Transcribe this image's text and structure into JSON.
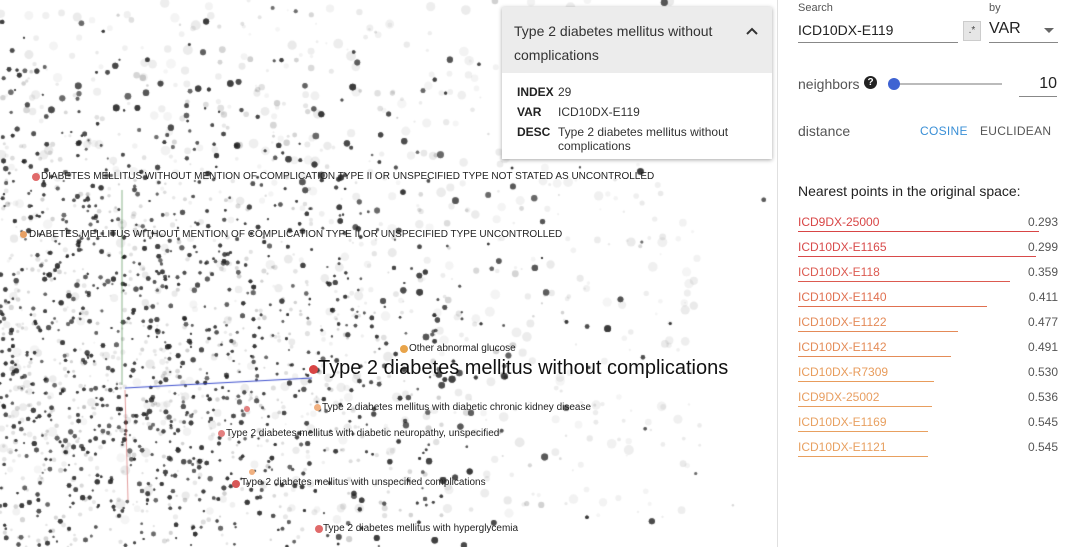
{
  "projection": {
    "selected_label": "Type 2 diabetes mellitus without complications",
    "point_labels": [
      {
        "text": "DIABETES MELLITUS WITHOUT MENTION OF COMPLICATION TYPE II OR UNSPECIFIED TYPE NOT STATED AS UNCONTROLLED",
        "color": "#e06a6a"
      },
      {
        "text": "DIABETES MELLITUS WITHOUT MENTION OF COMPLICATION TYPE II OR UNSPECIFIED TYPE UNCONTROLLED",
        "color": "#e7a064"
      },
      {
        "text": "Other abnormal glucose",
        "color": "#e8a44a"
      },
      {
        "text": "Type 2 diabetes mellitus with diabetic chronic kidney disease",
        "color": "#f0b080"
      },
      {
        "text": "Type 2 diabetes mellitus with diabetic neuropathy, unspecified",
        "color": "#e38080"
      },
      {
        "text": "Type 2 diabetes mellitus with unspecified complications",
        "color": "#d85858"
      },
      {
        "text": "Type 2 diabetes mellitus with hyperglycemia",
        "color": "#e06a6a"
      }
    ]
  },
  "card": {
    "title": "Type 2 diabetes mellitus without complications",
    "collapse_icon": "chevron-up-icon",
    "rows": [
      {
        "key": "INDEX",
        "value": "29"
      },
      {
        "key": "VAR",
        "value": "ICD10DX-E119"
      },
      {
        "key": "DESC",
        "value": "Type 2 diabetes mellitus without complications"
      }
    ]
  },
  "search": {
    "label": "Search",
    "value": "ICD10DX-E119",
    "regex_label": ".*",
    "by_label": "by",
    "by_value": "VAR"
  },
  "neighbors": {
    "label": "neighbors",
    "help_icon": "help-icon",
    "value": "10",
    "slider_level": 0
  },
  "distance": {
    "label": "distance",
    "options": [
      "COSINE",
      "EUCLIDEAN"
    ],
    "selected": "COSINE"
  },
  "nearest": {
    "title": "Nearest points in the original space:",
    "items": [
      {
        "name": "ICD9DX-25000",
        "value": "0.293",
        "color": "#d84545"
      },
      {
        "name": "ICD10DX-E1165",
        "value": "0.299",
        "color": "#d84a4a"
      },
      {
        "name": "ICD10DX-E118",
        "value": "0.359",
        "color": "#dc5a50"
      },
      {
        "name": "ICD10DX-E1140",
        "value": "0.411",
        "color": "#e07050"
      },
      {
        "name": "ICD10DX-E1122",
        "value": "0.477",
        "color": "#e48a58"
      },
      {
        "name": "ICD10DX-E1142",
        "value": "0.491",
        "color": "#e48c58"
      },
      {
        "name": "ICD10DX-R7309",
        "value": "0.530",
        "color": "#e89c5c"
      },
      {
        "name": "ICD9DX-25002",
        "value": "0.536",
        "color": "#e89e60"
      },
      {
        "name": "ICD10DX-E1169",
        "value": "0.545",
        "color": "#e8a060"
      },
      {
        "name": "ICD10DX-E1121",
        "value": "0.545",
        "color": "#e8a060"
      }
    ]
  }
}
